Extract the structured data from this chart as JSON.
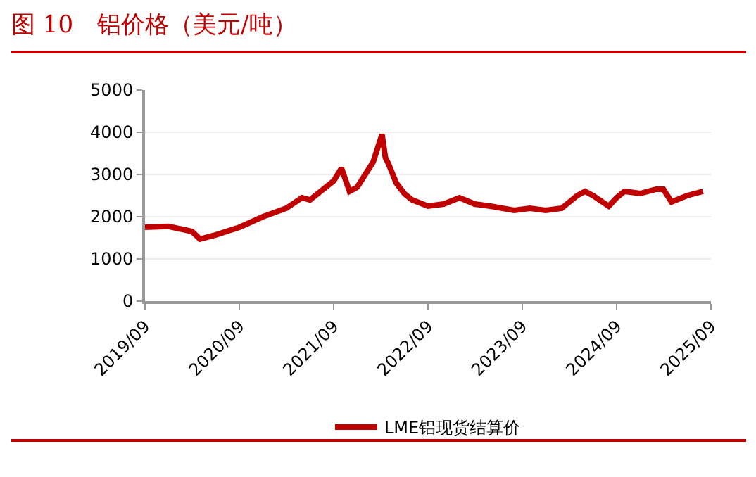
{
  "chart_data": {
    "type": "line",
    "title": "图 10　铝价格（美元/吨）",
    "x": [
      "2019-09",
      "2019-12",
      "2020-03",
      "2020-04",
      "2020-06",
      "2020-09",
      "2020-12",
      "2021-03",
      "2021-05",
      "2021-06",
      "2021-09",
      "2021-10",
      "2021-11",
      "2021-12",
      "2022-01",
      "2022-02",
      "2022-03-07",
      "2022-03-20",
      "2022-04",
      "2022-05",
      "2022-06",
      "2022-07",
      "2022-09",
      "2022-11",
      "2023-01",
      "2023-03",
      "2023-05",
      "2023-08",
      "2023-10",
      "2023-12",
      "2024-02",
      "2024-04",
      "2024-05",
      "2024-06",
      "2024-08",
      "2024-09",
      "2024-10",
      "2024-12",
      "2025-02",
      "2025-03",
      "2025-04",
      "2025-06",
      "2025-08"
    ],
    "series": [
      {
        "name": "LME铝现货结算价",
        "color": "#c00000",
        "values": [
          1750,
          1770,
          1650,
          1470,
          1570,
          1750,
          2000,
          2200,
          2450,
          2400,
          2850,
          3150,
          2600,
          2700,
          3000,
          3300,
          3950,
          3400,
          3250,
          2800,
          2550,
          2400,
          2250,
          2300,
          2450,
          2300,
          2250,
          2150,
          2200,
          2150,
          2200,
          2500,
          2600,
          2500,
          2250,
          2450,
          2600,
          2550,
          2650,
          2650,
          2350,
          2500,
          2600
        ]
      }
    ],
    "xlim": [
      "2019-09",
      "2025-09"
    ],
    "xticks": [
      {
        "value": "2019-09",
        "label": "2019/09"
      },
      {
        "value": "2020-09",
        "label": "2020/09"
      },
      {
        "value": "2021-09",
        "label": "2021/09"
      },
      {
        "value": "2022-09",
        "label": "2022/09"
      },
      {
        "value": "2023-09",
        "label": "2023/09"
      },
      {
        "value": "2024-09",
        "label": "2024/09"
      },
      {
        "value": "2025-09",
        "label": "2025/09"
      }
    ],
    "ylim": [
      0,
      5000
    ],
    "yticks": [
      0,
      1000,
      2000,
      3000,
      4000,
      5000
    ],
    "grid": "y",
    "legend": "bottom",
    "marker": "none",
    "line_style": "solid"
  }
}
